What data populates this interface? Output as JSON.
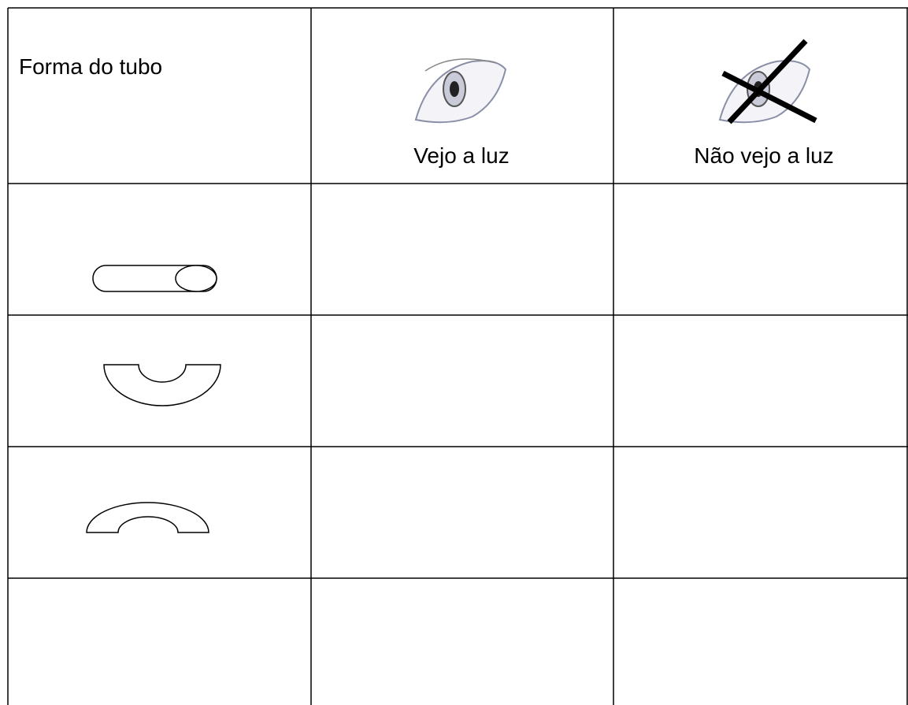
{
  "table": {
    "header": [
      "Forma do tubo",
      "Vejo a luz",
      "Não vejo a luz"
    ]
  }
}
